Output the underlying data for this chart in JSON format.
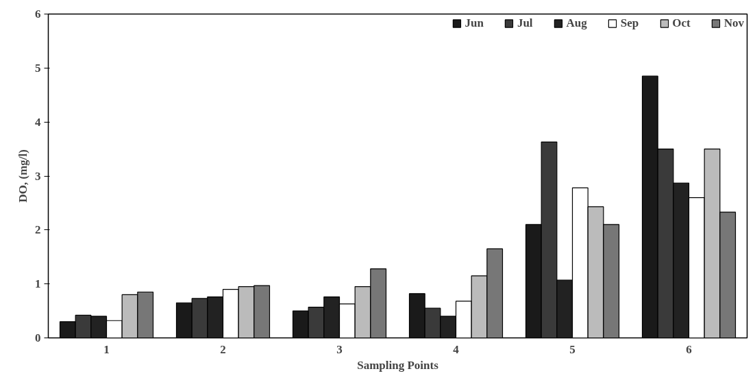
{
  "chart_data": {
    "type": "bar",
    "xlabel": "Sampling Points",
    "ylabel": "DO, (mg/l)",
    "categories": [
      "1",
      "2",
      "3",
      "4",
      "5",
      "6"
    ],
    "series": [
      {
        "name": "Jun",
        "color": "#1a1a1a",
        "values": [
          0.3,
          0.65,
          0.5,
          0.82,
          2.1,
          4.85
        ]
      },
      {
        "name": "Jul",
        "color": "#3a3a3a",
        "values": [
          0.42,
          0.73,
          0.57,
          0.55,
          3.63,
          3.5
        ]
      },
      {
        "name": "Aug",
        "color": "#222222",
        "values": [
          0.4,
          0.76,
          0.76,
          0.4,
          1.07,
          2.87
        ]
      },
      {
        "name": "Sep",
        "color": "#ffffff",
        "values": [
          0.32,
          0.9,
          0.63,
          0.68,
          2.78,
          2.6
        ]
      },
      {
        "name": "Oct",
        "color": "#bbbbbb",
        "values": [
          0.8,
          0.95,
          0.95,
          1.15,
          2.43,
          3.5
        ]
      },
      {
        "name": "Nov",
        "color": "#777777",
        "values": [
          0.85,
          0.97,
          1.28,
          1.65,
          2.1,
          2.33
        ]
      }
    ],
    "ylim": [
      0,
      6
    ],
    "yticks": [
      0,
      1,
      2,
      3,
      4,
      5,
      6
    ],
    "grid": false,
    "legend": "top right"
  }
}
